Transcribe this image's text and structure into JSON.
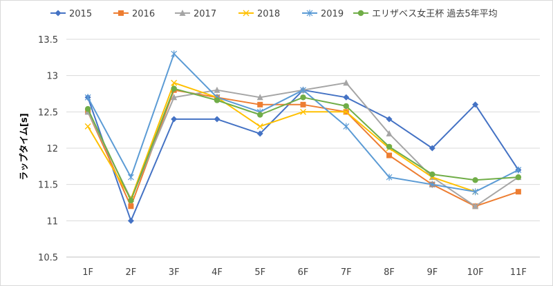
{
  "chart_data": {
    "type": "line",
    "ylabel": "ラップタイム[s]",
    "xlabel": "",
    "ylim": [
      10.5,
      13.5
    ],
    "yticks": [
      "10.5",
      "11",
      "11.5",
      "12",
      "12.5",
      "13",
      "13.5"
    ],
    "categories": [
      "1F",
      "2F",
      "3F",
      "4F",
      "5F",
      "6F",
      "7F",
      "8F",
      "9F",
      "10F",
      "11F"
    ],
    "grid": "horizontal",
    "legend": "top",
    "series": [
      {
        "name": "2015",
        "color": "#4472c4",
        "marker": "diamond",
        "values": [
          12.7,
          11.0,
          12.4,
          12.4,
          12.2,
          12.8,
          12.7,
          12.4,
          12.0,
          12.6,
          11.7
        ]
      },
      {
        "name": "2016",
        "color": "#ed7d31",
        "marker": "square",
        "values": [
          12.5,
          11.2,
          12.8,
          12.7,
          12.6,
          12.6,
          12.5,
          11.9,
          11.5,
          11.2,
          11.4
        ]
      },
      {
        "name": "2017",
        "color": "#a5a5a5",
        "marker": "triangle",
        "values": [
          12.5,
          11.3,
          12.7,
          12.8,
          12.7,
          12.8,
          12.9,
          12.2,
          11.6,
          11.2,
          11.6
        ]
      },
      {
        "name": "2018",
        "color": "#ffc000",
        "marker": "x",
        "values": [
          12.3,
          11.3,
          12.9,
          12.7,
          12.3,
          12.5,
          12.5,
          12.0,
          11.6,
          11.4,
          null
        ]
      },
      {
        "name": "2019",
        "color": "#5b9bd5",
        "marker": "star",
        "values": [
          12.7,
          11.6,
          13.3,
          12.7,
          12.5,
          12.8,
          12.3,
          11.6,
          11.5,
          11.4,
          11.7
        ]
      },
      {
        "name": "エリザベス女王杯 過去5年平均",
        "color": "#70ad47",
        "marker": "circle",
        "values": [
          12.54,
          11.28,
          12.82,
          12.66,
          12.46,
          12.7,
          12.58,
          12.02,
          11.64,
          11.56,
          11.6
        ]
      }
    ]
  }
}
